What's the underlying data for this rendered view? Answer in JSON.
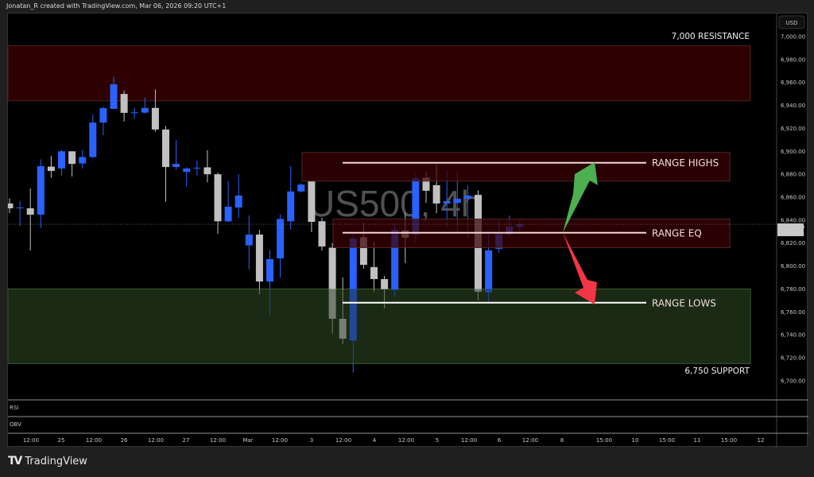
{
  "header": {
    "credit": "Jonatan_R created with TradingView.com, Mar 06, 2026 09:20 UTC+1"
  },
  "watermark": "US500, 4h",
  "price_axis": {
    "currency": "USD",
    "ticks": [
      "7,000.00",
      "6,980.00",
      "6,960.00",
      "6,940.00",
      "6,920.00",
      "6,900.00",
      "6,880.00",
      "6,860.00",
      "6,840.00",
      "6,820.00",
      "6,800.00",
      "6,780.00",
      "6,760.00",
      "6,740.00",
      "6,720.00",
      "6,700.00"
    ],
    "last_price": "6,836.40",
    "countdown": "02:39:01"
  },
  "time_axis": [
    "12:00",
    "25",
    "12:00",
    "26",
    "12:00",
    "27",
    "12:00",
    "Mar",
    "12:00",
    "3",
    "12:00",
    "4",
    "12:00",
    "5",
    "12:00",
    "6",
    "12:00",
    "8",
    "15:00",
    "10",
    "15:00",
    "11",
    "15:00",
    "12"
  ],
  "panes": {
    "rsi": "RSI",
    "obv": "OBV"
  },
  "annotations": {
    "resistance": "7,000 RESISTANCE",
    "range_highs": "RANGE HIGHS",
    "range_eq": "RANGE EQ",
    "range_lows": "RANGE LOWS",
    "support": "6,750 SUPPORT"
  },
  "colors": {
    "up": "#2962ff",
    "down": "#c0c0c0",
    "resistance_zone": "#2e0002",
    "support_zone": "#1b2a15",
    "up_arrow": "#4caf50",
    "down_arrow": "#f23645"
  },
  "footer": {
    "brand": "TradingView"
  },
  "chart_data": {
    "type": "candlestick",
    "symbol": "US500",
    "timeframe": "4h",
    "ylim": [
      6690,
      7010
    ],
    "last": 6836.4,
    "zones": {
      "resistance": [
        6944,
        6992
      ],
      "range_highs_box": [
        6874,
        6899
      ],
      "range_eq_box": [
        6816,
        6841
      ],
      "support": [
        6715,
        6780
      ]
    },
    "levels": {
      "range_highs": 6890,
      "range_eq": 6829,
      "range_lows": 6768
    },
    "ohlc": [
      [
        6854.5,
        6859,
        6846,
        6850.3
      ],
      [
        6851,
        6857,
        6835,
        6851
      ],
      [
        6850.3,
        6867.6,
        6813.6,
        6844.8
      ],
      [
        6844.8,
        6893,
        6833,
        6887
      ],
      [
        6886.6,
        6896,
        6877,
        6882.9
      ],
      [
        6885,
        6901,
        6879,
        6900
      ],
      [
        6900,
        6900,
        6878,
        6889
      ],
      [
        6889.4,
        6901,
        6885,
        6895
      ],
      [
        6895,
        6932,
        6894,
        6925
      ],
      [
        6925,
        6939,
        6914,
        6937.6
      ],
      [
        6937,
        6965,
        6937,
        6958.4
      ],
      [
        6950,
        6953,
        6926,
        6933.5
      ],
      [
        6934,
        6938,
        6928.6,
        6934
      ],
      [
        6933.7,
        6947,
        6933,
        6937.8
      ],
      [
        6937.8,
        6954,
        6917,
        6919
      ],
      [
        6919,
        6922,
        6856,
        6886.3
      ],
      [
        6886.3,
        6910,
        6884,
        6889
      ],
      [
        6882,
        6886,
        6869,
        6885
      ],
      [
        6885.7,
        6892,
        6879,
        6885.7
      ],
      [
        6886,
        6901,
        6873,
        6880
      ],
      [
        6880,
        6881.5,
        6828,
        6839
      ],
      [
        6839,
        6874,
        6838,
        6851.7
      ],
      [
        6851,
        6880,
        6842,
        6861.4
      ],
      [
        6818,
        6844,
        6797,
        6827.4
      ],
      [
        6827.4,
        6831.6,
        6775.5,
        6786.5
      ],
      [
        6786.5,
        6813.6,
        6757.5,
        6806
      ],
      [
        6806.7,
        6845,
        6790,
        6841
      ],
      [
        6839,
        6887,
        6832,
        6865
      ],
      [
        6865,
        6872,
        6864,
        6871
      ],
      [
        6874,
        6874,
        6829.5,
        6838.5
      ],
      [
        6839,
        6842,
        6813.6,
        6817
      ],
      [
        6816,
        6820,
        6741,
        6754
      ],
      [
        6754,
        6790,
        6732,
        6736.6
      ],
      [
        6735,
        6828,
        6707,
        6824
      ],
      [
        6825,
        6838,
        6797.6,
        6801
      ],
      [
        6799,
        6821,
        6777.5,
        6788.6
      ],
      [
        6788.6,
        6791.4,
        6763,
        6779.6
      ],
      [
        6779,
        6837,
        6772.7,
        6831.6
      ],
      [
        6831,
        6846,
        6802.5,
        6824.7
      ],
      [
        6827.4,
        6880,
        6821,
        6876.6
      ],
      [
        6877,
        6882,
        6855,
        6865.6
      ],
      [
        6870.4,
        6889,
        6846,
        6854.5
      ],
      [
        6854.5,
        6883.6,
        6834,
        6856.5
      ],
      [
        6855,
        6882,
        6830,
        6858.6
      ],
      [
        6858.6,
        6870,
        6825,
        6861.4
      ],
      [
        6862,
        6866,
        6770,
        6777.6
      ],
      [
        6777,
        6828,
        6769,
        6813.6
      ],
      [
        6815,
        6839,
        6811.5,
        6828
      ],
      [
        6827.4,
        6844,
        6825,
        6834.4
      ],
      [
        6834,
        6840,
        6830,
        6836.4
      ]
    ]
  }
}
